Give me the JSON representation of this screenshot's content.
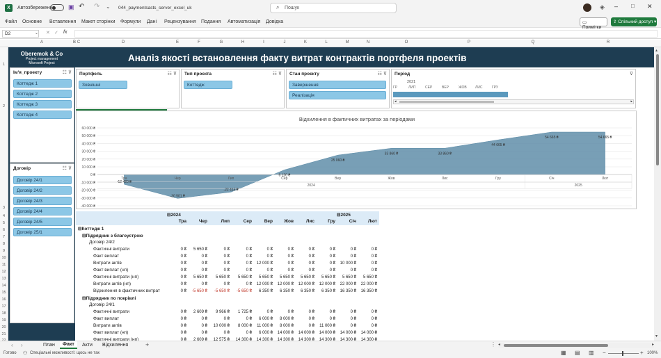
{
  "titlebar": {
    "autosave_label": "Автозбереження",
    "filename": "044_paymentsasts_server_excel_uk",
    "search_placeholder": "Пошук"
  },
  "menu": {
    "items": [
      "Файл",
      "Основне",
      "Вставлення",
      "Макет сторінки",
      "Формули",
      "Дані",
      "Рецензування",
      "Подання",
      "Автоматизація",
      "Довідка"
    ],
    "comments": "Примітки",
    "share": "Спільний доступ"
  },
  "formula": {
    "cell_ref": "D2",
    "fx": "fx"
  },
  "columns": [
    "A",
    "B",
    "C",
    "D",
    "E",
    "F",
    "G",
    "H",
    "I",
    "J",
    "K",
    "L",
    "M",
    "N",
    "O",
    "P",
    "Q",
    "R"
  ],
  "rows": [
    "1",
    "2",
    "3",
    "4",
    "5",
    "6",
    "7",
    "8",
    "9",
    "10",
    "11",
    "12",
    "13",
    "14",
    "15",
    "16",
    "17",
    "18",
    "19",
    "20",
    "21",
    "22"
  ],
  "brand": {
    "name": "Oberemok & Co",
    "line1": "Project management",
    "line2": "Microsoft Project"
  },
  "header_title": "Аналіз якості встановлення факту витрат контрактів портфеля проектів",
  "slicers": {
    "project": {
      "title": "Ім'я_проекту",
      "items": [
        "Коттедж 1",
        "Коттедж 2",
        "Коттедж 3",
        "Коттедж 4"
      ]
    },
    "contract": {
      "title": "Договір",
      "items": [
        "Договір 24/1",
        "Договір 24/2",
        "Договір 24/3",
        "Договір 24/4",
        "Договір 24/5",
        "Договір 25/1"
      ]
    },
    "portfolio": {
      "title": "Портфель",
      "items": [
        "Зовнішні"
      ]
    },
    "project_type": {
      "title": "Тип проєкта",
      "items": [
        "Коттедж"
      ]
    },
    "project_state": {
      "title": "Стан проєкту",
      "items": [
        "Завершення",
        "Реалізація"
      ]
    },
    "period": {
      "title": "Період",
      "year": "2021",
      "months": [
        "ГР",
        "ЛИП",
        "СЕР",
        "ВЕР",
        "ЖОВ",
        "ЛИС",
        "ГРУ"
      ]
    }
  },
  "chart_data": {
    "type": "area",
    "title": "Відхилення в фактичних витратах за періодами",
    "x": [
      "Тра",
      "Чер",
      "Лип",
      "Сер",
      "Вер",
      "Жов",
      "Лис",
      "Гру",
      "Січ",
      "Лют"
    ],
    "year_groups": [
      {
        "label": "2024",
        "span": 8
      },
      {
        "label": "2025",
        "span": 2
      }
    ],
    "values": [
      -12420,
      -30501,
      -22415,
      6120,
      25060,
      33860,
      33860,
      44665,
      54665,
      54665
    ],
    "data_labels": [
      "-12 420 ₴",
      "-30 501 ₴",
      "-22 415 ₴",
      "6 120 ₴",
      "25 060 ₴",
      "33 860 ₴",
      "33 860 ₴",
      "44 665 ₴",
      "54 665 ₴",
      "54 665 ₴"
    ],
    "y_ticks": [
      "60 000 ₴",
      "50 000 ₴",
      "40 000 ₴",
      "30 000 ₴",
      "20 000 ₴",
      "10 000 ₴",
      "0 ₴",
      "-10 000 ₴",
      "-20 000 ₴",
      "-30 000 ₴",
      "-40 000 ₴"
    ],
    "ylim": [
      -40000,
      60000
    ],
    "color": "#5a8aa6"
  },
  "pivot": {
    "year_headers": [
      "2024",
      "2025"
    ],
    "month_headers": [
      "Тра",
      "Чер",
      "Лип",
      "Сер",
      "Вер",
      "Жов",
      "Лис",
      "Гру",
      "Січ",
      "Лют"
    ],
    "rows": [
      {
        "indent": 0,
        "label": "⊟Коттедж 1",
        "bold": true,
        "values": []
      },
      {
        "indent": 1,
        "label": "⊟Підрядник з благоустрою",
        "bold": true,
        "values": []
      },
      {
        "indent": 2,
        "label": "Договір 24/2",
        "bold": false,
        "values": []
      },
      {
        "indent": 3,
        "label": "Фактичні витрати",
        "values": [
          "0 ₴",
          "5 650 ₴",
          "0 ₴",
          "0 ₴",
          "0 ₴",
          "0 ₴",
          "0 ₴",
          "0 ₴",
          "0 ₴",
          "0 ₴"
        ]
      },
      {
        "indent": 3,
        "label": "Факт виплат",
        "values": [
          "0 ₴",
          "0 ₴",
          "0 ₴",
          "0 ₴",
          "0 ₴",
          "0 ₴",
          "0 ₴",
          "0 ₴",
          "0 ₴",
          "0 ₴"
        ]
      },
      {
        "indent": 3,
        "label": "Витрати актів",
        "values": [
          "0 ₴",
          "0 ₴",
          "0 ₴",
          "0 ₴",
          "12 000 ₴",
          "0 ₴",
          "0 ₴",
          "0 ₴",
          "10 000 ₴",
          "0 ₴"
        ]
      },
      {
        "indent": 3,
        "label": "Факт виплат (нп)",
        "values": [
          "0 ₴",
          "0 ₴",
          "0 ₴",
          "0 ₴",
          "0 ₴",
          "0 ₴",
          "0 ₴",
          "0 ₴",
          "0 ₴",
          "0 ₴"
        ]
      },
      {
        "indent": 3,
        "label": "Фактичні витрати (нп)",
        "values": [
          "0 ₴",
          "5 650 ₴",
          "5 650 ₴",
          "5 650 ₴",
          "5 650 ₴",
          "5 650 ₴",
          "5 650 ₴",
          "5 650 ₴",
          "5 650 ₴",
          "5 650 ₴"
        ]
      },
      {
        "indent": 3,
        "label": "Витрати актів (нп)",
        "values": [
          "0 ₴",
          "0 ₴",
          "0 ₴",
          "0 ₴",
          "12 000 ₴",
          "12 000 ₴",
          "12 000 ₴",
          "12 000 ₴",
          "22 000 ₴",
          "22 000 ₴"
        ]
      },
      {
        "indent": 3,
        "label": "Відхилення в фактичних витрат",
        "values": [
          "0 ₴",
          "-5 650 ₴",
          "-5 650 ₴",
          "-5 650 ₴",
          "6 350 ₴",
          "6 350 ₴",
          "6 350 ₴",
          "6 350 ₴",
          "16 350 ₴",
          "16 350 ₴"
        ]
      },
      {
        "indent": 1,
        "label": "⊟Підрядник по покрівлі",
        "bold": true,
        "values": []
      },
      {
        "indent": 2,
        "label": "Договір 24/1",
        "bold": false,
        "values": []
      },
      {
        "indent": 3,
        "label": "Фактичні витрати",
        "values": [
          "0 ₴",
          "2 609 ₴",
          "9 966 ₴",
          "1 725 ₴",
          "0 ₴",
          "0 ₴",
          "0 ₴",
          "0 ₴",
          "0 ₴",
          "0 ₴"
        ]
      },
      {
        "indent": 3,
        "label": "Факт виплат",
        "values": [
          "0 ₴",
          "0 ₴",
          "0 ₴",
          "0 ₴",
          "6 000 ₴",
          "8 000 ₴",
          "0 ₴",
          "0 ₴",
          "0 ₴",
          "0 ₴"
        ]
      },
      {
        "indent": 3,
        "label": "Витрати актів",
        "values": [
          "0 ₴",
          "0 ₴",
          "10 000 ₴",
          "8 000 ₴",
          "11 000 ₴",
          "8 000 ₴",
          "0 ₴",
          "11 000 ₴",
          "0 ₴",
          "0 ₴"
        ]
      },
      {
        "indent": 3,
        "label": "Факт виплат (нп)",
        "values": [
          "0 ₴",
          "0 ₴",
          "0 ₴",
          "0 ₴",
          "6 000 ₴",
          "14 000 ₴",
          "14 000 ₴",
          "14 000 ₴",
          "14 000 ₴",
          "14 000 ₴"
        ]
      },
      {
        "indent": 3,
        "label": "Фактичні витрати (нп)",
        "values": [
          "0 ₴",
          "2 609 ₴",
          "12 575 ₴",
          "14 300 ₴",
          "14 300 ₴",
          "14 300 ₴",
          "14 300 ₴",
          "14 300 ₴",
          "14 300 ₴",
          "14 300 ₴"
        ]
      }
    ]
  },
  "sheet_tabs": [
    "План",
    "Факт",
    "Акти",
    "Відхилення"
  ],
  "active_tab": "Факт",
  "status": {
    "ready": "Готово",
    "accessibility": "Спеціальні можливості: щось не так",
    "zoom": "100%"
  }
}
